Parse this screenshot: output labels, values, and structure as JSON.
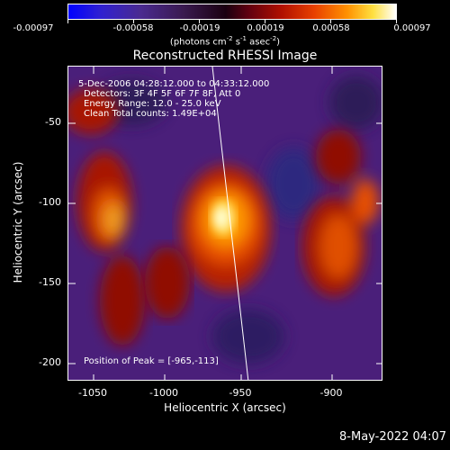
{
  "colorbar": {
    "ticks": [
      "-0.00097",
      "-0.00058",
      "-0.00019",
      "0.00019",
      "0.00058",
      "0.00097"
    ],
    "unit_base": "(photons cm",
    "unit_exp1": "-2",
    "unit_mid": " s",
    "unit_exp2": "-1",
    "unit_mid2": " asec",
    "unit_exp3": "-2",
    "unit_end": ")"
  },
  "plot": {
    "title": "Reconstructed RHESSI Image",
    "time_range": "5-Dec-2006 04:28:12.000 to 04:33:12.000",
    "detectors": "Detectors: 3F 4F 5F 6F 7F 8F, Att 0",
    "energy": "Energy Range: 12.0 - 25.0 keV",
    "clean": "Clean    Total counts: 1.49E+04",
    "peak": "Position of Peak = [-965,-113]",
    "xlabel": "Heliocentric X (arcsec)",
    "ylabel": "Heliocentric Y (arcsec)",
    "xticks": [
      "-1050",
      "-1000",
      "-950",
      "-900"
    ],
    "yticks": [
      "-50",
      "-100",
      "-150",
      "-200"
    ]
  },
  "footer": {
    "date": "8-May-2022 04:07"
  },
  "colors": {
    "background": "#000000",
    "axis": "#ffffff",
    "limb": "#ffffff"
  }
}
